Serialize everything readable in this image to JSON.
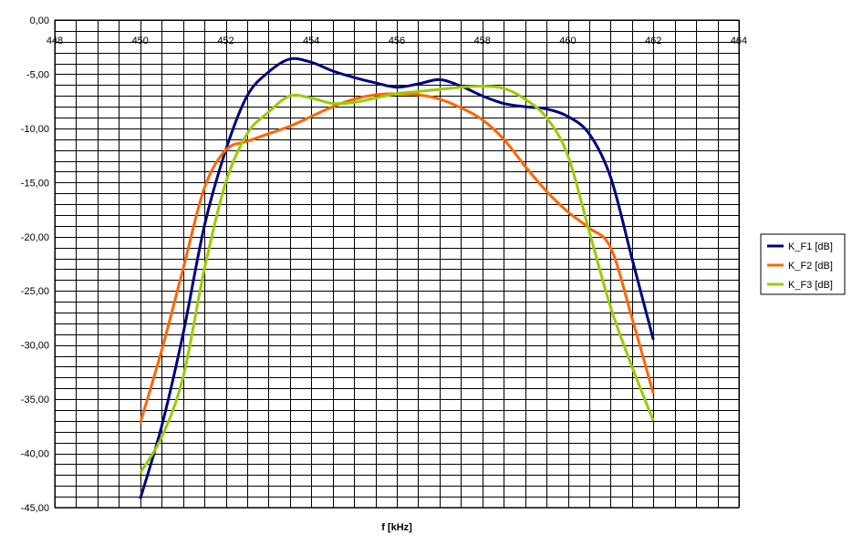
{
  "chart_data": {
    "type": "line",
    "xlabel": "f [kHz]",
    "ylabel": "",
    "xlim": [
      448,
      464
    ],
    "ylim": [
      -45,
      0
    ],
    "xticks": [
      448,
      450,
      452,
      454,
      456,
      458,
      460,
      462,
      464
    ],
    "yticks": [
      0,
      -5,
      -10,
      -15,
      -20,
      -25,
      -30,
      -35,
      -40,
      -45
    ],
    "xtick_labels": [
      "448",
      "450",
      "452",
      "454",
      "456",
      "458",
      "460",
      "462",
      "464"
    ],
    "ytick_labels": [
      "0,00",
      "-5,00",
      "-10,00",
      "-15,00",
      "-20,00",
      "-25,00",
      "-30,00",
      "-35,00",
      "-40,00",
      "-45,00"
    ],
    "x_axis_position": "top",
    "grid": true,
    "minor_grid_x": 0.5,
    "minor_grid_y": 1,
    "legend_position": "right",
    "series": [
      {
        "name": "K_F1 [dB]",
        "color": "#000080",
        "x": [
          450,
          450.5,
          451,
          451.5,
          452,
          452.5,
          453,
          453.5,
          454,
          454.5,
          455,
          455.5,
          456,
          456.5,
          457,
          457.5,
          458,
          458.5,
          459,
          459.5,
          460,
          460.5,
          461,
          461.5,
          462
        ],
        "y": [
          -44.2,
          -37.5,
          -29,
          -19,
          -12,
          -7,
          -4.8,
          -3.6,
          -3.9,
          -4.7,
          -5.3,
          -5.8,
          -6.2,
          -5.9,
          -5.5,
          -6.1,
          -7.0,
          -7.7,
          -8.0,
          -8.2,
          -8.9,
          -10.5,
          -14.5,
          -22,
          -29.5
        ]
      },
      {
        "name": "K_F2 [dB]",
        "color": "#ff6600",
        "x": [
          450,
          450.5,
          451,
          451.5,
          452,
          452.5,
          453,
          453.5,
          454,
          454.5,
          455,
          455.5,
          456,
          456.5,
          457,
          457.5,
          458,
          458.5,
          459,
          459.5,
          460,
          460.5,
          461,
          461.5,
          462
        ],
        "y": [
          -37.2,
          -30.5,
          -23,
          -15.5,
          -12,
          -11.2,
          -10.5,
          -9.8,
          -8.9,
          -8.0,
          -7.3,
          -6.9,
          -6.8,
          -6.9,
          -7.3,
          -8.1,
          -9.2,
          -11,
          -13.5,
          -15.8,
          -17.7,
          -19.2,
          -21,
          -27.5,
          -34.5
        ]
      },
      {
        "name": "K_F3 [dB]",
        "color": "#99cc00",
        "x": [
          450,
          450.5,
          451,
          451.5,
          452,
          452.5,
          453,
          453.5,
          454,
          454.5,
          455,
          455.5,
          456,
          456.5,
          457,
          457.5,
          458,
          458.5,
          459,
          459.5,
          460,
          460.5,
          461,
          461.5,
          462
        ],
        "y": [
          -41.8,
          -38.5,
          -33,
          -23,
          -15,
          -10.5,
          -8.5,
          -7.0,
          -7.2,
          -7.7,
          -7.6,
          -7.2,
          -6.8,
          -6.6,
          -6.4,
          -6.2,
          -6.1,
          -6.3,
          -7.3,
          -9.0,
          -12.5,
          -19.5,
          -26.5,
          -32,
          -37
        ]
      }
    ]
  }
}
